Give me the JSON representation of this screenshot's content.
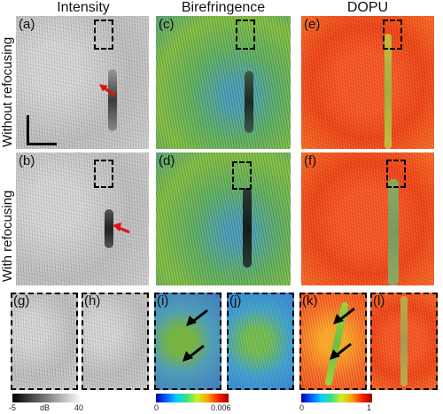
{
  "columns": {
    "intensity": "Intensity",
    "birefringence": "Birefringence",
    "dopu": "DOPU"
  },
  "rows": {
    "without": "Without refocusing",
    "with": "With refocusing"
  },
  "panels": {
    "a": "(a)",
    "b": "(b)",
    "c": "(c)",
    "d": "(d)",
    "e": "(e)",
    "f": "(f)",
    "g": "(g)",
    "h": "(h)",
    "i": "(i)",
    "j": "(j)",
    "k": "(k)",
    "l": "(l)"
  },
  "colorbars": {
    "intensity": {
      "min": "-5",
      "unit": "dB",
      "max": "40"
    },
    "birefringence": {
      "min": "0",
      "max": "0.006"
    },
    "dopu": {
      "min": "0",
      "max": "1"
    }
  },
  "colors": {
    "arrow_red": "#e01010",
    "arrow_black": "#000000"
  }
}
